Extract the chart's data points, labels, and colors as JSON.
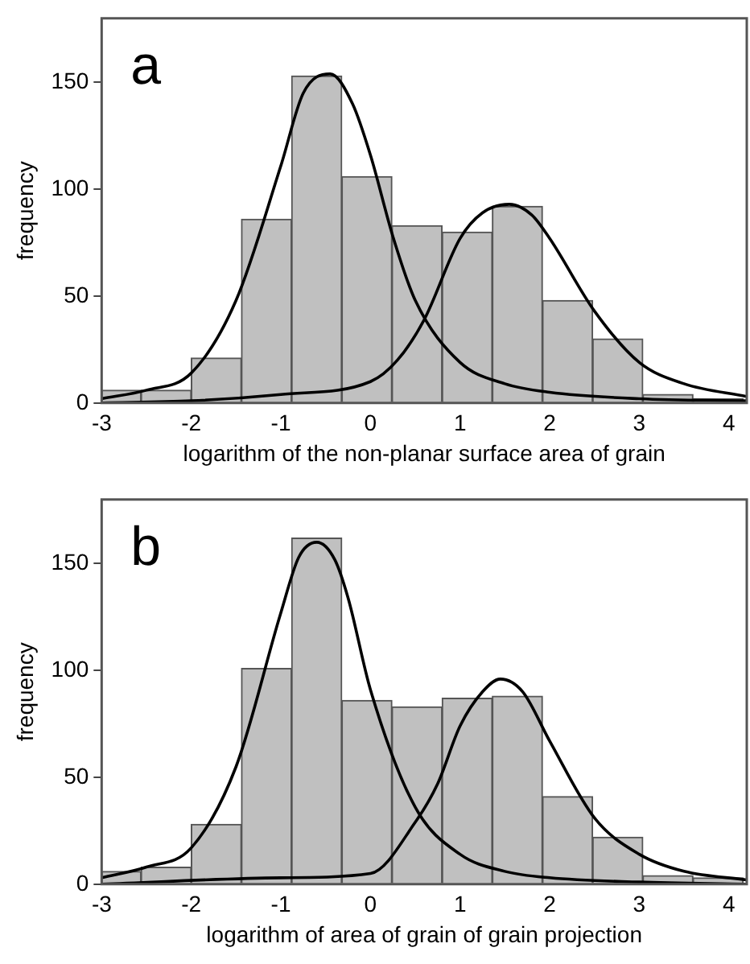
{
  "chart_data": [
    {
      "type": "histogram",
      "title": "a",
      "xlabel": "logarithm of the non-planar surface area of grain",
      "ylabel": "frequency",
      "bins": [
        -3,
        -2.56,
        -2,
        -1.44,
        -0.88,
        -0.32,
        0.24,
        0.8,
        1.36,
        1.92,
        2.48,
        3.04,
        3.6,
        4.16
      ],
      "values": [
        6,
        6,
        21,
        86,
        153,
        106,
        83,
        80,
        92,
        48,
        30,
        4,
        2
      ],
      "color": "#c0c0c0",
      "series": [
        {
          "type": "line",
          "color": "#000000",
          "x": [
            -3,
            -2.5,
            -2,
            -1.5,
            -1,
            -0.75,
            -0.45,
            -0.2,
            0,
            0.25,
            0.5,
            1,
            1.5,
            2,
            3,
            4.2
          ],
          "values": [
            2,
            6,
            14,
            48,
            111,
            145,
            154,
            140,
            116,
            78,
            48,
            19,
            9,
            5,
            2,
            1
          ]
        },
        {
          "type": "line",
          "color": "#000000",
          "x": [
            -3,
            -2,
            -1,
            0,
            0.3,
            0.6,
            1,
            1.25,
            1.55,
            1.8,
            2,
            2.5,
            3,
            3.5,
            4.2
          ],
          "values": [
            0,
            1,
            4,
            10,
            20,
            39,
            77,
            89,
            93,
            88,
            77,
            43,
            19,
            9,
            3
          ]
        }
      ],
      "xlim": [
        -3,
        4.2
      ],
      "ylim": [
        0,
        180
      ],
      "xticks": [
        -3,
        -2,
        -1,
        0,
        1,
        2,
        3,
        4
      ],
      "yticks": [
        0,
        50,
        100,
        150
      ]
    },
    {
      "type": "histogram",
      "title": "b",
      "xlabel": "logarithm of area of grain of grain projection",
      "ylabel": "frequency",
      "bins": [
        -3,
        -2.56,
        -2,
        -1.44,
        -0.88,
        -0.32,
        0.24,
        0.8,
        1.36,
        1.92,
        2.48,
        3.04,
        3.6,
        4.16
      ],
      "values": [
        6,
        8,
        28,
        101,
        162,
        86,
        83,
        87,
        88,
        41,
        22,
        4,
        3
      ],
      "color": "#c0c0c0",
      "series": [
        {
          "type": "line",
          "color": "#000000",
          "x": [
            -3,
            -2.5,
            -2,
            -1.5,
            -1,
            -0.8,
            -0.6,
            -0.4,
            -0.25,
            0,
            0.5,
            1,
            1.5,
            2,
            3,
            4.2
          ],
          "values": [
            3,
            8,
            17,
            55,
            127,
            153,
            160,
            152,
            134,
            91,
            36,
            14,
            6,
            3,
            1,
            0
          ]
        },
        {
          "type": "line",
          "color": "#000000",
          "x": [
            -3,
            -1,
            0,
            0.5,
            0.75,
            1,
            1.25,
            1.45,
            1.7,
            2,
            2.5,
            3,
            3.5,
            4.2
          ],
          "values": [
            0,
            3,
            5,
            29,
            47,
            74,
            90,
            96,
            90,
            67,
            31,
            14,
            6,
            2
          ]
        }
      ],
      "xlim": [
        -3,
        4.2
      ],
      "ylim": [
        0,
        180
      ],
      "xticks": [
        -3,
        -2,
        -1,
        0,
        1,
        2,
        3,
        4
      ],
      "yticks": [
        0,
        50,
        100,
        150
      ]
    }
  ]
}
